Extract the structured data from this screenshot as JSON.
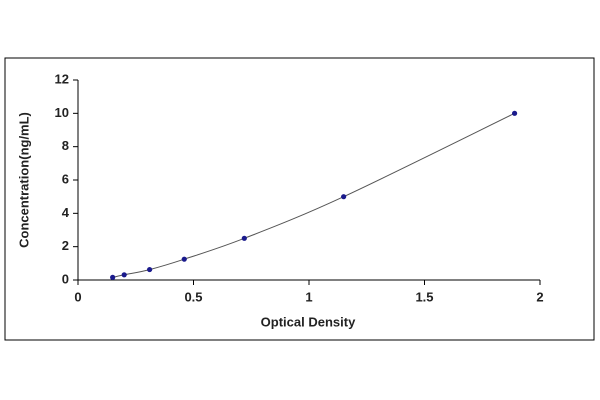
{
  "chart_data": {
    "type": "scatter",
    "x_label": "Optical Density",
    "y_label": "Concentration(ng/mL)",
    "x": [
      0.15,
      0.2,
      0.31,
      0.46,
      0.72,
      1.15,
      1.89
    ],
    "values": [
      0.156,
      0.312,
      0.625,
      1.25,
      2.5,
      5,
      10
    ],
    "color": "#1a1a8c",
    "line_color": "#555555",
    "line": true,
    "xlim": [
      0,
      2
    ],
    "xticks": [
      0,
      0.5,
      1,
      1.5,
      2
    ],
    "ylim": [
      0,
      12
    ],
    "yticks": [
      0,
      2,
      4,
      6,
      8,
      10,
      12
    ],
    "grid": false
  }
}
